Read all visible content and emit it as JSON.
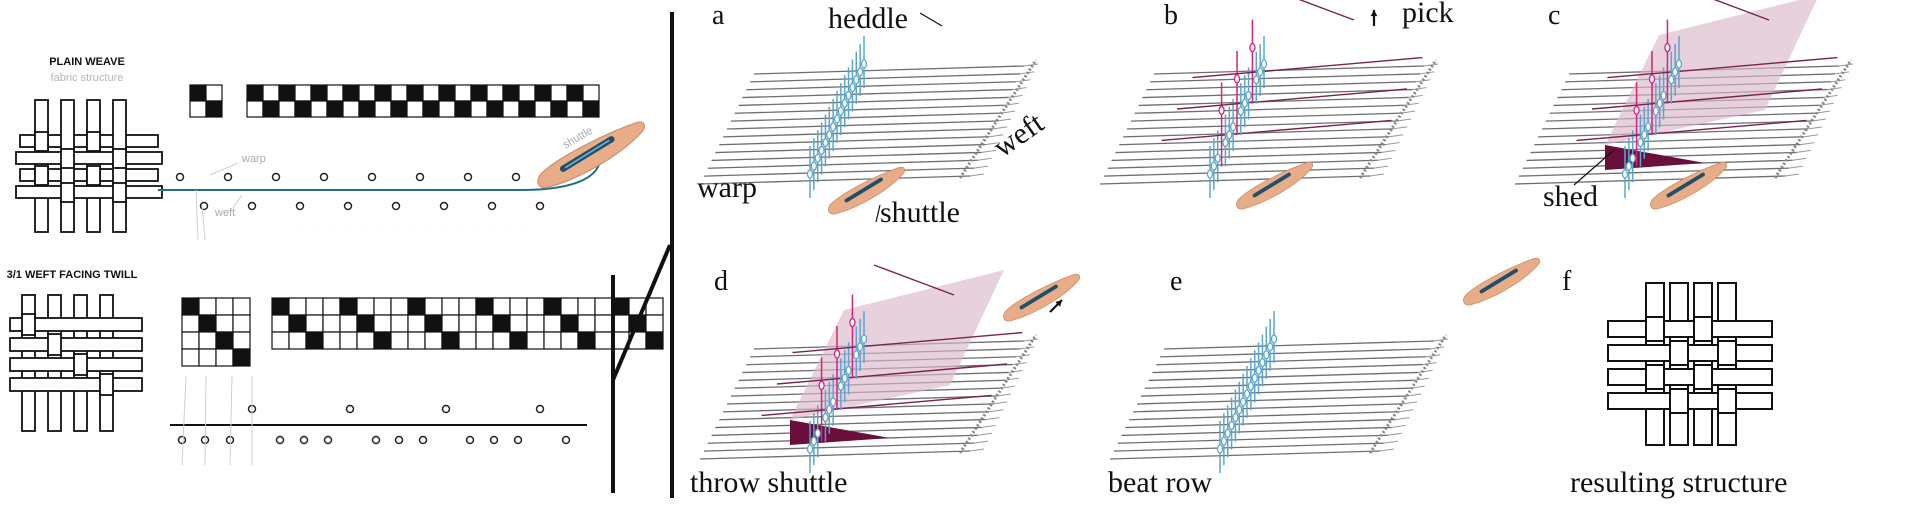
{
  "plain_weave": {
    "title": "PLAIN WEAVE",
    "subtitle": "fabric structure",
    "label_warp": "warp",
    "label_weft": "weft",
    "label_shuttle": "shuttle",
    "big_grid_rows": [
      "1010101010101010101010",
      "0101010101010101010101"
    ],
    "small_grid_rows": [
      "10",
      "01"
    ]
  },
  "twill": {
    "title": "3/1 WEFT FACING TWILL",
    "small_grid_rows": [
      "1000",
      "0100",
      "0010",
      "0001"
    ],
    "big_grid_rows": [
      "10001000100010001000100",
      "01000100010001000100010",
      "00100010001000100010001"
    ]
  },
  "steps": {
    "a": {
      "letter": "a",
      "heddle": "heddle",
      "weft": "weft",
      "warp": "warp",
      "shuttle": "shuttle"
    },
    "b": {
      "letter": "b",
      "pick": "pick"
    },
    "c": {
      "letter": "c",
      "shed": "shed"
    },
    "d": {
      "letter": "d",
      "caption": "throw shuttle"
    },
    "e": {
      "letter": "e",
      "caption": "beat row"
    },
    "f": {
      "letter": "f",
      "caption": "resulting structure"
    }
  },
  "colors": {
    "heddle_blue": "#5aa6cf",
    "pick_pink": "#d8237a",
    "thread_purple": "#7a2250",
    "shed_fill": "#d8b8cb",
    "shed_dark": "#6a0f3c",
    "shuttle_body": "#e8ad88",
    "shuttle_bobbin": "#1e4f6b",
    "warp_teal": "#1f6f86",
    "warp_gray": "#6e6e6e"
  }
}
